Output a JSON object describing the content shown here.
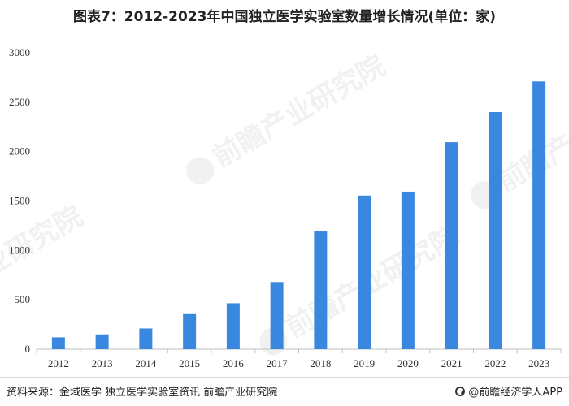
{
  "title": "图表7：2012-2023年中国独立医学实验室数量增长情况(单位：家)",
  "footer": {
    "source": "资料来源：金域医学 独立医学实验室资讯 前瞻产业研究院",
    "brand": "@前瞻经济学人APP"
  },
  "watermarks": [
    "前瞻产业研究院",
    "前瞻产业研究院",
    "前瞻产业研究院",
    "业研究院"
  ],
  "colors": {
    "bar": "#3a87e0",
    "axis": "#bfbfbf",
    "text": "#333333"
  },
  "chart_data": {
    "type": "bar",
    "title": "图表7：2012-2023年中国独立医学实验室数量增长情况(单位：家)",
    "categories": [
      "2012",
      "2013",
      "2014",
      "2015",
      "2016",
      "2017",
      "2018",
      "2019",
      "2020",
      "2021",
      "2022",
      "2023"
    ],
    "values": [
      120,
      150,
      210,
      355,
      465,
      680,
      1200,
      1555,
      1595,
      2095,
      2400,
      2710
    ],
    "xlabel": "",
    "ylabel": "",
    "ylim": [
      0,
      3000
    ],
    "yticks": [
      0,
      500,
      1000,
      1500,
      2000,
      2500,
      3000
    ],
    "grid": false,
    "legend": "none"
  }
}
